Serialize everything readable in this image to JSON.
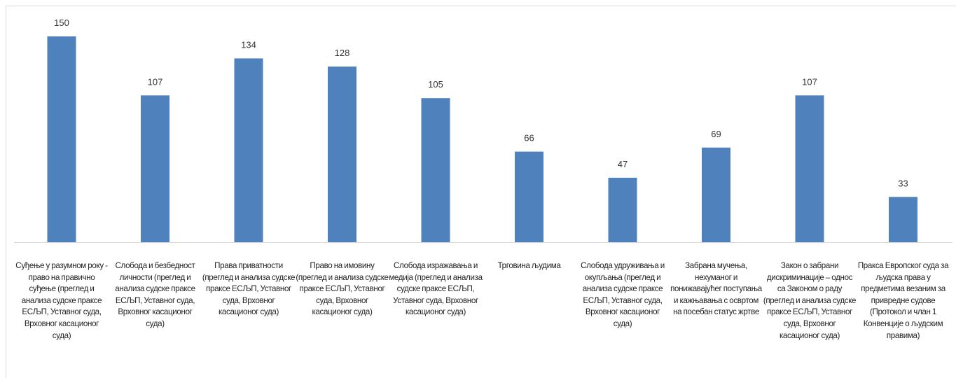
{
  "chart_data": {
    "type": "bar",
    "categories": [
      "Суђење у разумном року - право на правично суђење (преглед и анализа судске праксе ЕСЉП, Уставног суда, Врховног касационог суда)",
      "Слобода и безбедност личности (преглед и анализа судске праксе ЕСЉП, Уставног суда, Врховног касационог суда)",
      "Права приватности (преглед и анализа судске праксе ЕСЉП, Уставног суда, Врховног касационог суда)",
      "Право на имовину (преглед и анализа судске праксе ЕСЉП, Уставног суда, Врховног касационог суда)",
      "Слобода изражавања и медија (преглед и анализа судске праксе ЕСЉП, Уставног суда, Врховног касационог суда)",
      "Трговина људима",
      "Слобода удруживања и окупљања (преглед и анализа судске праксе ЕСЉП, Уставног суда, Врховног касационог суда)",
      "Забрана мучења, нехуманог и понижавајућег поступања и кажњавања с освртом на посебан статус жртве",
      "Закон о забрани дискриминације – однос са Законом о раду (преглед и анализа судске праксе ЕСЉП, Уставног суда, Врховног касационог суда)",
      "Пракса Европског суда за људска права у предметима везаним за привредне судове (Протокол и члан 1 Конвенције о људским правима)"
    ],
    "values": [
      150,
      107,
      134,
      128,
      105,
      66,
      47,
      69,
      107,
      33
    ],
    "title": "",
    "xlabel": "",
    "ylabel": "",
    "ylim": [
      0,
      160
    ],
    "grid": false,
    "legend": "none",
    "data_labels": true,
    "bar_color": "#4f81bd",
    "axis_color": "#d9d9d9",
    "label_color": "#222222"
  }
}
